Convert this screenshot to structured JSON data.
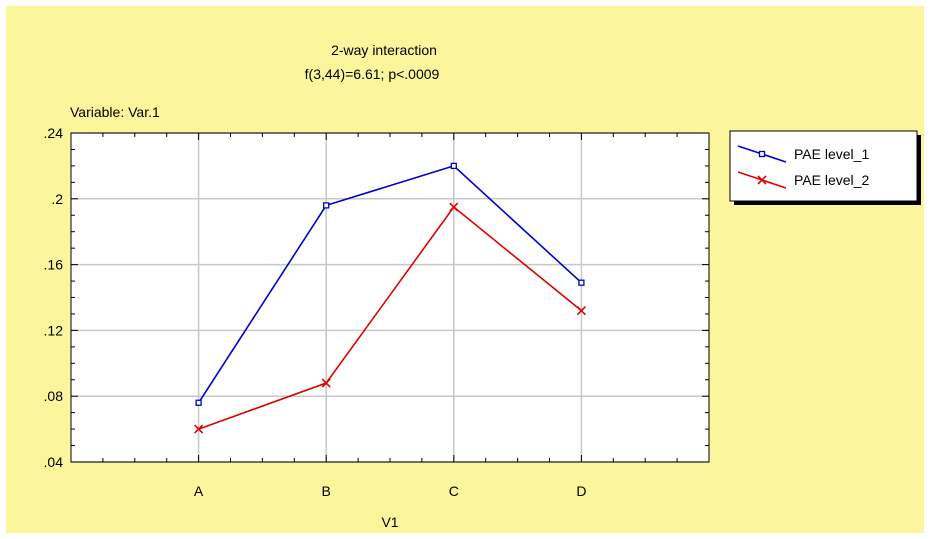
{
  "chart_data": {
    "type": "line",
    "title": "2-way interaction",
    "subtitle": "f(3,44)=6.61; p<.0009",
    "variable_label": "Variable: Var.1",
    "xlabel": "V1",
    "ylabel": "",
    "categories": [
      "A",
      "B",
      "C",
      "D"
    ],
    "ylim": [
      0.04,
      0.24
    ],
    "y_ticks": [
      0.04,
      0.08,
      0.12,
      0.16,
      0.2,
      0.24
    ],
    "y_tick_labels": [
      ".04",
      ".08",
      ".12",
      ".16",
      ".2",
      ".24"
    ],
    "grid": true,
    "legend_position": "top-right",
    "background_color": "#fbf59b",
    "series": [
      {
        "name": "PAE level_1",
        "values": [
          0.076,
          0.196,
          0.22,
          0.149
        ],
        "color": "#0000cc",
        "marker": "square"
      },
      {
        "name": "PAE level_2",
        "values": [
          0.06,
          0.088,
          0.195,
          0.132
        ],
        "color": "#dd0000",
        "marker": "x"
      }
    ]
  }
}
